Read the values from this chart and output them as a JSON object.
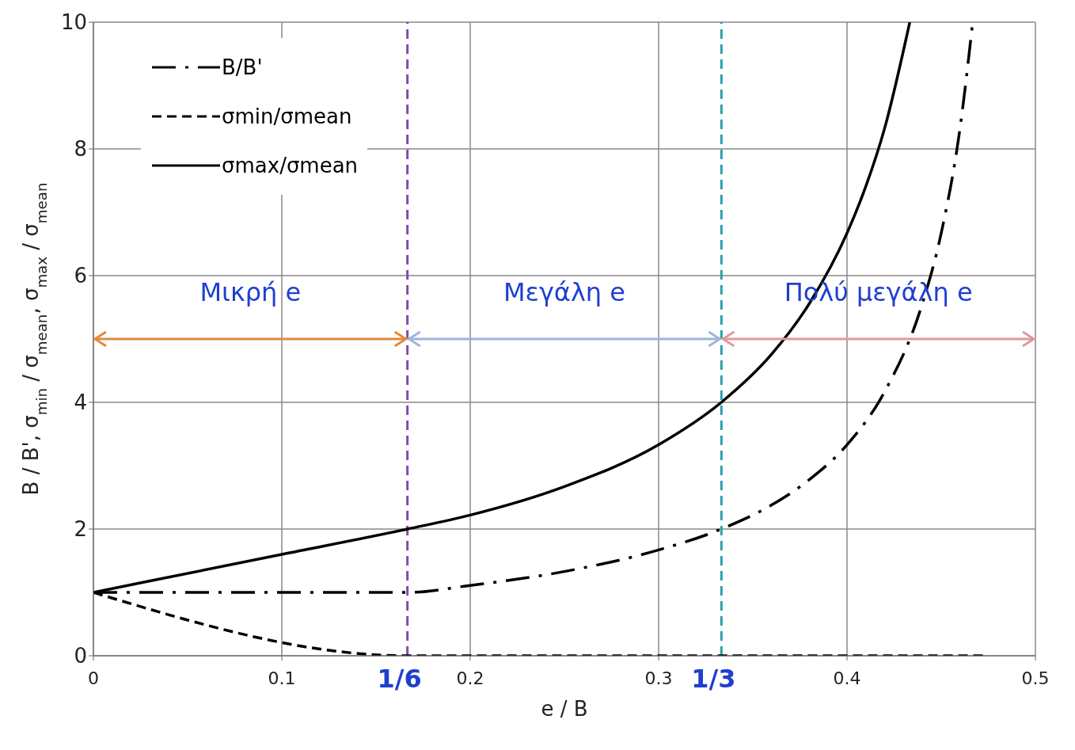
{
  "chart_data": {
    "type": "line",
    "xlabel": "e / B",
    "ylabel": "B / B', σ$_{min}$ / σ$_{mean}$, σ$_{max}$ / σ$_{mean}$",
    "series": [
      {
        "name": "B/B'",
        "color": "#000000",
        "line_style": "dashdot",
        "x": [
          0,
          0.1667,
          0.2,
          0.25,
          0.3,
          0.3333,
          0.36,
          0.38,
          0.4,
          0.42,
          0.44,
          0.45,
          0.46,
          0.4667
        ],
        "values": [
          1,
          1,
          1.11,
          1.33,
          1.67,
          2,
          2.38,
          2.78,
          3.33,
          4.17,
          5.56,
          6.67,
          8.33,
          10
        ]
      },
      {
        "name": "σmin/σmean",
        "color": "#000000",
        "line_style": "dashed",
        "x": [
          0,
          0.1667,
          0.475
        ],
        "values": [
          1,
          0,
          0
        ]
      },
      {
        "name": "σmax/σmean",
        "color": "#000000",
        "line_style": "solid",
        "x": [
          0,
          0.1,
          0.1667,
          0.2,
          0.25,
          0.3,
          0.3333,
          0.36,
          0.38,
          0.4,
          0.41,
          0.42,
          0.4333
        ],
        "values": [
          1,
          1.6,
          2,
          2.22,
          2.67,
          3.33,
          4,
          4.76,
          5.56,
          6.67,
          7.41,
          8.33,
          10
        ]
      }
    ],
    "xlim": [
      0,
      0.5
    ],
    "xticks": [
      0,
      0.1,
      0.2,
      0.3,
      0.4,
      0.5
    ],
    "ylim": [
      0,
      10
    ],
    "yticks": [
      0,
      2,
      4,
      6,
      8,
      10
    ],
    "grid": true,
    "legend": "top left",
    "marker": "none",
    "ref_lines": [
      {
        "axis": "x",
        "value": 0.166667,
        "color": "#7b4fa8",
        "line_style": "dashed"
      },
      {
        "axis": "x",
        "value": 0.333333,
        "color": "#2aa0b0",
        "line_style": "dashed"
      }
    ],
    "annotations": [
      "Μικρή e",
      "Μεγάλη e",
      "Πολύ μεγάλη e",
      {
        "text": "1/6",
        "x": 0.166667,
        "y": 0
      },
      {
        "text": "1/3",
        "x": 0.333333,
        "y": 0
      }
    ]
  }
}
